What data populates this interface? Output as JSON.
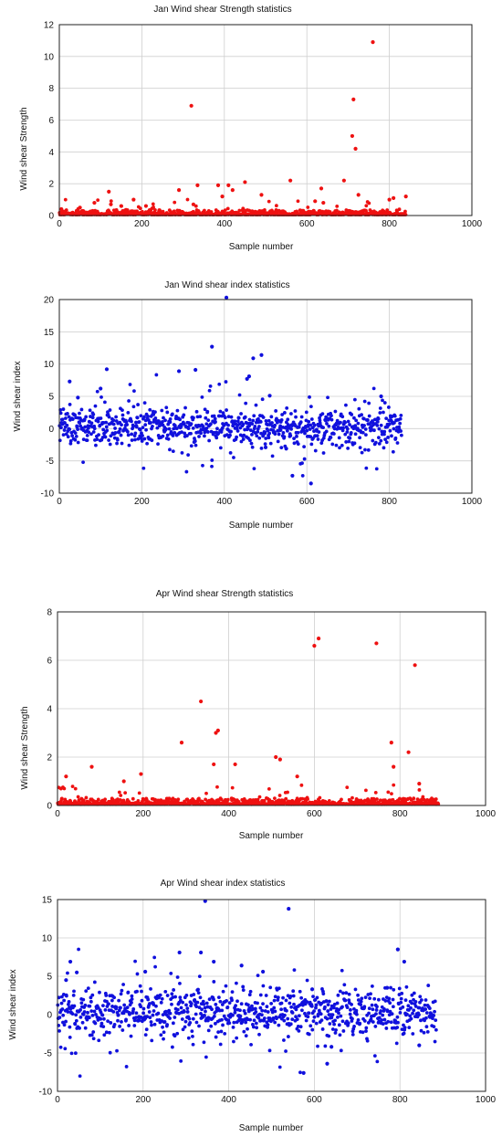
{
  "chart_data": [
    {
      "type": "scatter",
      "title": "Jan Wind shear Strength statistics",
      "xlabel": "Sample number",
      "ylabel": "Wind shear Strength",
      "xlim": [
        0,
        1000
      ],
      "ylim": [
        0,
        12
      ],
      "xticks": [
        0,
        200,
        400,
        600,
        800,
        1000
      ],
      "yticks": [
        0,
        2,
        4,
        6,
        8,
        10,
        12
      ],
      "grid": true,
      "color": "#ee1111",
      "num_points": 840,
      "baseline": 0.05,
      "spread": 0.6,
      "notable_points": [
        {
          "x": 5,
          "y": 0.4
        },
        {
          "x": 50,
          "y": 0.5
        },
        {
          "x": 85,
          "y": 0.8
        },
        {
          "x": 120,
          "y": 1.5
        },
        {
          "x": 125,
          "y": 0.7
        },
        {
          "x": 150,
          "y": 0.6
        },
        {
          "x": 180,
          "y": 1.0
        },
        {
          "x": 210,
          "y": 0.6
        },
        {
          "x": 290,
          "y": 1.6
        },
        {
          "x": 320,
          "y": 6.9
        },
        {
          "x": 325,
          "y": 0.7
        },
        {
          "x": 335,
          "y": 1.9
        },
        {
          "x": 385,
          "y": 1.9
        },
        {
          "x": 395,
          "y": 1.2
        },
        {
          "x": 410,
          "y": 1.9
        },
        {
          "x": 420,
          "y": 1.6
        },
        {
          "x": 450,
          "y": 2.1
        },
        {
          "x": 490,
          "y": 1.3
        },
        {
          "x": 560,
          "y": 2.2
        },
        {
          "x": 620,
          "y": 0.9
        },
        {
          "x": 635,
          "y": 1.7
        },
        {
          "x": 640,
          "y": 0.8
        },
        {
          "x": 690,
          "y": 2.2
        },
        {
          "x": 710,
          "y": 5.0
        },
        {
          "x": 713,
          "y": 7.3
        },
        {
          "x": 718,
          "y": 4.2
        },
        {
          "x": 725,
          "y": 1.3
        },
        {
          "x": 760,
          "y": 10.9
        },
        {
          "x": 800,
          "y": 1.0
        },
        {
          "x": 810,
          "y": 1.1
        },
        {
          "x": 840,
          "y": 1.2
        }
      ]
    },
    {
      "type": "scatter",
      "title": "Jan Wind shear index statistics",
      "xlabel": "Sample number",
      "ylabel": "Wind shear index",
      "xlim": [
        0,
        1000
      ],
      "ylim": [
        -10,
        20
      ],
      "xticks": [
        0,
        200,
        400,
        600,
        800,
        1000
      ],
      "yticks": [
        -10,
        -5,
        0,
        5,
        10,
        15,
        20
      ],
      "grid": true,
      "color": "#1010dd",
      "num_points": 830,
      "baseline": 0.3,
      "spread": 2.2,
      "notable_points": [
        {
          "x": 25,
          "y": 7.3
        },
        {
          "x": 45,
          "y": 4.8
        },
        {
          "x": 100,
          "y": 6.2
        },
        {
          "x": 115,
          "y": 9.2
        },
        {
          "x": 290,
          "y": 8.9
        },
        {
          "x": 330,
          "y": 9.1
        },
        {
          "x": 370,
          "y": 12.7
        },
        {
          "x": 405,
          "y": 20.3
        },
        {
          "x": 455,
          "y": 7.7
        },
        {
          "x": 460,
          "y": 8.1
        },
        {
          "x": 470,
          "y": 10.9
        },
        {
          "x": 490,
          "y": 11.4
        },
        {
          "x": 510,
          "y": 5.1
        },
        {
          "x": 565,
          "y": -7.3
        },
        {
          "x": 610,
          "y": -8.5
        },
        {
          "x": 550,
          "y": -3.1
        },
        {
          "x": 500,
          "y": -2.9
        },
        {
          "x": 780,
          "y": 5.0
        }
      ]
    },
    {
      "type": "scatter",
      "title": "Apr Wind shear Strength statistics",
      "xlabel": "Sample number",
      "ylabel": "Wind shear Strength",
      "xlim": [
        0,
        1000
      ],
      "ylim": [
        0,
        8
      ],
      "xticks": [
        0,
        200,
        400,
        600,
        800,
        1000
      ],
      "yticks": [
        0,
        2,
        4,
        6,
        8
      ],
      "grid": true,
      "color": "#ee1111",
      "num_points": 890,
      "baseline": 0.05,
      "spread": 0.5,
      "notable_points": [
        {
          "x": 8,
          "y": 0.7
        },
        {
          "x": 20,
          "y": 1.2
        },
        {
          "x": 80,
          "y": 1.6
        },
        {
          "x": 155,
          "y": 1.0
        },
        {
          "x": 195,
          "y": 1.3
        },
        {
          "x": 290,
          "y": 2.6
        },
        {
          "x": 335,
          "y": 4.3
        },
        {
          "x": 370,
          "y": 3.0
        },
        {
          "x": 375,
          "y": 3.1
        },
        {
          "x": 365,
          "y": 1.7
        },
        {
          "x": 415,
          "y": 1.7
        },
        {
          "x": 510,
          "y": 2.0
        },
        {
          "x": 520,
          "y": 1.9
        },
        {
          "x": 560,
          "y": 1.2
        },
        {
          "x": 600,
          "y": 6.6
        },
        {
          "x": 610,
          "y": 6.9
        },
        {
          "x": 745,
          "y": 6.7
        },
        {
          "x": 780,
          "y": 2.6
        },
        {
          "x": 785,
          "y": 1.6
        },
        {
          "x": 820,
          "y": 2.2
        },
        {
          "x": 835,
          "y": 5.8
        },
        {
          "x": 845,
          "y": 0.9
        }
      ]
    },
    {
      "type": "scatter",
      "title": "Apr Wind shear index statistics",
      "xlabel": "Sample number",
      "ylabel": "Wind shear index",
      "xlim": [
        0,
        1000
      ],
      "ylim": [
        -10,
        15
      ],
      "xticks": [
        0,
        200,
        400,
        600,
        800,
        1000
      ],
      "yticks": [
        -10,
        -5,
        0,
        5,
        10,
        15
      ],
      "grid": true,
      "color": "#1010dd",
      "num_points": 885,
      "baseline": 0.2,
      "spread": 2.4,
      "notable_points": [
        {
          "x": 20,
          "y": 4.5
        },
        {
          "x": 30,
          "y": 6.9
        },
        {
          "x": 45,
          "y": 5.5
        },
        {
          "x": 205,
          "y": 5.6
        },
        {
          "x": 285,
          "y": 8.1
        },
        {
          "x": 335,
          "y": 8.1
        },
        {
          "x": 345,
          "y": 14.8
        },
        {
          "x": 365,
          "y": 6.9
        },
        {
          "x": 430,
          "y": 6.4
        },
        {
          "x": 480,
          "y": 5.6
        },
        {
          "x": 540,
          "y": 13.8
        },
        {
          "x": 595,
          "y": 3.3
        },
        {
          "x": 575,
          "y": -7.6
        },
        {
          "x": 630,
          "y": -6.4
        },
        {
          "x": 640,
          "y": -4.2
        },
        {
          "x": 795,
          "y": 8.5
        },
        {
          "x": 810,
          "y": 6.9
        },
        {
          "x": 845,
          "y": -4.0
        },
        {
          "x": 770,
          "y": 3.5
        }
      ]
    }
  ]
}
